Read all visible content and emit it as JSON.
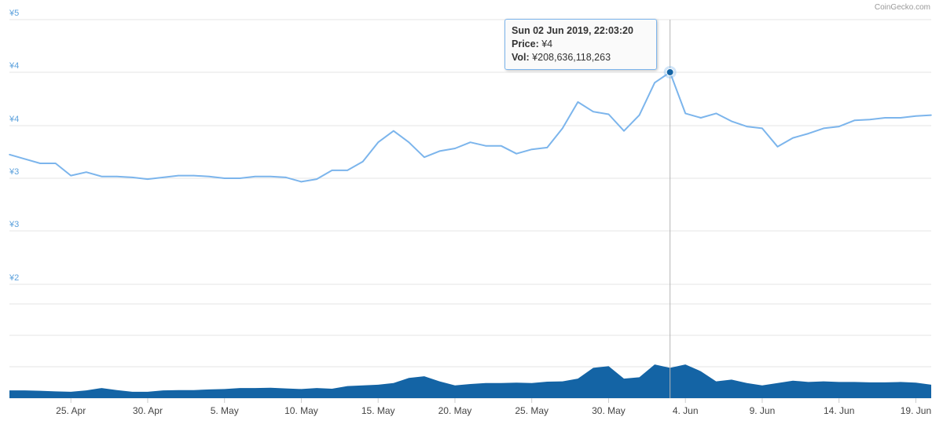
{
  "credit": "CoinGecko.com",
  "tooltip": {
    "date": "Sun 02 Jun 2019, 22:03:20",
    "price_label": "Price:",
    "price_value": "¥4",
    "vol_label": "Vol:",
    "vol_value": "¥208,636,118,263"
  },
  "colors": {
    "price_line": "#7cb5ec",
    "volume": "#1464a5",
    "marker": "#1464a5"
  },
  "chart_data": [
    {
      "type": "line",
      "name": "price",
      "ylabels": [
        "¥5",
        "¥4",
        "¥4",
        "¥3",
        "¥3",
        "¥2"
      ],
      "x_start": "2019-04-21",
      "x_end": "2019-06-20",
      "xticks": [
        "25. Apr",
        "30. Apr",
        "5. May",
        "10. May",
        "15. May",
        "20. May",
        "25. May",
        "30. May",
        "4. Jun",
        "9. Jun",
        "14. Jun",
        "19. Jun"
      ],
      "x": [
        "2019-04-21",
        "2019-04-22",
        "2019-04-23",
        "2019-04-24",
        "2019-04-25",
        "2019-04-26",
        "2019-04-27",
        "2019-04-28",
        "2019-04-29",
        "2019-04-30",
        "2019-05-01",
        "2019-05-02",
        "2019-05-03",
        "2019-05-04",
        "2019-05-05",
        "2019-05-06",
        "2019-05-07",
        "2019-05-08",
        "2019-05-09",
        "2019-05-10",
        "2019-05-11",
        "2019-05-12",
        "2019-05-13",
        "2019-05-14",
        "2019-05-15",
        "2019-05-16",
        "2019-05-17",
        "2019-05-18",
        "2019-05-19",
        "2019-05-20",
        "2019-05-21",
        "2019-05-22",
        "2019-05-23",
        "2019-05-24",
        "2019-05-25",
        "2019-05-26",
        "2019-05-27",
        "2019-05-28",
        "2019-05-29",
        "2019-05-30",
        "2019-05-31",
        "2019-06-01",
        "2019-06-02",
        "2019-06-03",
        "2019-06-04",
        "2019-06-05",
        "2019-06-06",
        "2019-06-07",
        "2019-06-08",
        "2019-06-09",
        "2019-06-10",
        "2019-06-11",
        "2019-06-12",
        "2019-06-13",
        "2019-06-14",
        "2019-06-15",
        "2019-06-16",
        "2019-06-17",
        "2019-06-18",
        "2019-06-19",
        "2019-06-20"
      ],
      "y": [
        3.38,
        3.33,
        3.28,
        3.28,
        3.14,
        3.18,
        3.13,
        3.13,
        3.12,
        3.1,
        3.12,
        3.14,
        3.14,
        3.13,
        3.11,
        3.11,
        3.13,
        3.13,
        3.12,
        3.07,
        3.1,
        3.2,
        3.2,
        3.3,
        3.52,
        3.65,
        3.52,
        3.35,
        3.42,
        3.45,
        3.52,
        3.48,
        3.48,
        3.39,
        3.44,
        3.46,
        3.68,
        3.98,
        3.87,
        3.84,
        3.65,
        3.83,
        4.2,
        4.32,
        3.85,
        3.8,
        3.85,
        3.76,
        3.7,
        3.68,
        3.47,
        3.57,
        3.62,
        3.68,
        3.7,
        3.77,
        3.78,
        3.8,
        3.8,
        3.82,
        3.83
      ],
      "ylim": [
        1.9,
        4.92
      ]
    },
    {
      "type": "area",
      "name": "volume",
      "x": [
        "2019-04-21",
        "2019-04-22",
        "2019-04-23",
        "2019-04-24",
        "2019-04-25",
        "2019-04-26",
        "2019-04-27",
        "2019-04-28",
        "2019-04-29",
        "2019-04-30",
        "2019-05-01",
        "2019-05-02",
        "2019-05-03",
        "2019-05-04",
        "2019-05-05",
        "2019-05-06",
        "2019-05-07",
        "2019-05-08",
        "2019-05-09",
        "2019-05-10",
        "2019-05-11",
        "2019-05-12",
        "2019-05-13",
        "2019-05-14",
        "2019-05-15",
        "2019-05-16",
        "2019-05-17",
        "2019-05-18",
        "2019-05-19",
        "2019-05-20",
        "2019-05-21",
        "2019-05-22",
        "2019-05-23",
        "2019-05-24",
        "2019-05-25",
        "2019-05-26",
        "2019-05-27",
        "2019-05-28",
        "2019-05-29",
        "2019-05-30",
        "2019-05-31",
        "2019-06-01",
        "2019-06-02",
        "2019-06-03",
        "2019-06-04",
        "2019-06-05",
        "2019-06-06",
        "2019-06-07",
        "2019-06-08",
        "2019-06-09",
        "2019-06-10",
        "2019-06-11",
        "2019-06-12",
        "2019-06-13",
        "2019-06-14",
        "2019-06-15",
        "2019-06-16",
        "2019-06-17",
        "2019-06-18",
        "2019-06-19",
        "2019-06-20"
      ],
      "y": [
        0.23,
        0.23,
        0.22,
        0.2,
        0.19,
        0.23,
        0.3,
        0.24,
        0.19,
        0.19,
        0.23,
        0.24,
        0.24,
        0.26,
        0.27,
        0.3,
        0.3,
        0.31,
        0.29,
        0.27,
        0.3,
        0.28,
        0.36,
        0.38,
        0.4,
        0.45,
        0.6,
        0.65,
        0.5,
        0.38,
        0.42,
        0.45,
        0.45,
        0.46,
        0.45,
        0.49,
        0.5,
        0.58,
        0.9,
        0.95,
        0.58,
        0.62,
        1.0,
        0.9,
        1.0,
        0.8,
        0.5,
        0.55,
        0.45,
        0.38,
        0.45,
        0.52,
        0.48,
        0.5,
        0.48,
        0.48,
        0.47,
        0.47,
        0.48,
        0.46,
        0.4
      ]
    }
  ]
}
